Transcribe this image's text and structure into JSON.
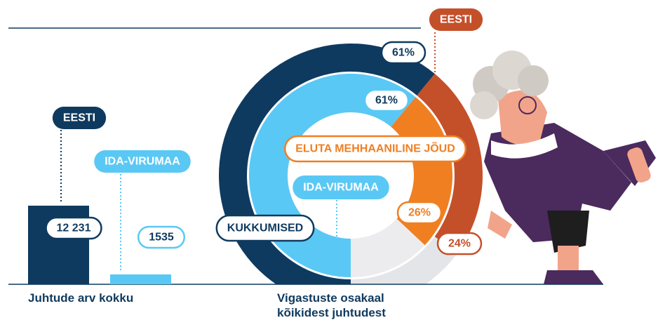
{
  "chart_data": [
    {
      "type": "bar",
      "title": "Juhtude arv kokku",
      "categories": [
        "EESTI",
        "IDA-VIRUMAA"
      ],
      "values": [
        12231,
        1535
      ],
      "value_labels": [
        "12 231",
        "1535"
      ],
      "colors": [
        "#0f3a5f",
        "#5ac8f5"
      ]
    },
    {
      "type": "donut",
      "title": "Vigastuste osakaal kõikidest juhtudest",
      "categories": [
        "KUKKUMISED",
        "ELUTA MEHHAANILINE JÕUD"
      ],
      "series": [
        {
          "name": "EESTI",
          "colors": [
            "#0f3a5f",
            "#c4502a"
          ],
          "values": [
            61,
            24
          ],
          "value_labels": [
            "61%",
            "24%"
          ]
        },
        {
          "name": "IDA-VIRUMAA",
          "colors": [
            "#5ac8f5",
            "#f07f22"
          ],
          "values": [
            61,
            26
          ],
          "value_labels": [
            "61%",
            "26%"
          ]
        }
      ]
    }
  ]
}
